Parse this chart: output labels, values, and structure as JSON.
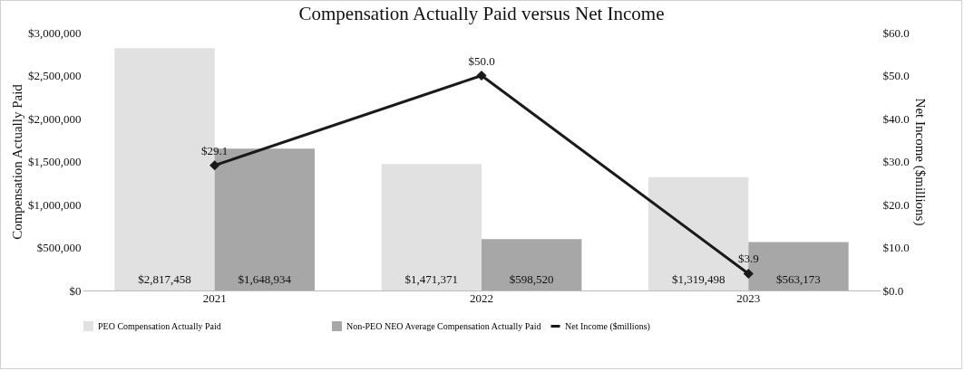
{
  "chart_data": {
    "type": "bar",
    "title": "Compensation Actually Paid versus Net Income",
    "ylabel": "Compensation Actually Paid",
    "y2label": "Net Income ($millions)",
    "categories": [
      "2021",
      "2022",
      "2023"
    ],
    "series": [
      {
        "name": "PEO Compensation Actually Paid",
        "color": "#e0e1e0",
        "values": [
          2817458,
          1471371,
          1319498
        ],
        "value_labels": [
          "$2,817,458",
          "$1,471,371",
          "$1,319,498"
        ]
      },
      {
        "name": "Non-PEO NEO Average Compensation Actually Paid",
        "color": "#a6a7a6",
        "values": [
          1648934,
          598520,
          563173
        ],
        "value_labels": [
          "$1,648,934",
          "$598,520",
          "$563,173"
        ]
      },
      {
        "name": "Net Income ($millions)",
        "type": "line",
        "axis": "y2",
        "color": "#1a1a1a",
        "values": [
          29.1,
          50.0,
          3.9
        ],
        "value_labels": [
          "$29.1",
          "$50.0",
          "$3.9"
        ]
      }
    ],
    "ylim": [
      0,
      3000000
    ],
    "yticks": [
      {
        "value": 0,
        "label": "$0"
      },
      {
        "value": 500000,
        "label": "$500,000"
      },
      {
        "value": 1000000,
        "label": "$1,000,000"
      },
      {
        "value": 1500000,
        "label": "$1,500,000"
      },
      {
        "value": 2000000,
        "label": "$2,000,000"
      },
      {
        "value": 2500000,
        "label": "$2,500,000"
      },
      {
        "value": 3000000,
        "label": "$3,000,000"
      }
    ],
    "y2lim": [
      0,
      60
    ],
    "y2ticks": [
      {
        "value": 0,
        "label": "$0.0"
      },
      {
        "value": 10,
        "label": "$10.0"
      },
      {
        "value": 20,
        "label": "$20.0"
      },
      {
        "value": 30,
        "label": "$30.0"
      },
      {
        "value": 40,
        "label": "$40.0"
      },
      {
        "value": 50,
        "label": "$50.0"
      },
      {
        "value": 60,
        "label": "$60.0"
      }
    ],
    "grid": false,
    "legend": "bottom",
    "marker": "diamond",
    "line_style": "solid"
  }
}
